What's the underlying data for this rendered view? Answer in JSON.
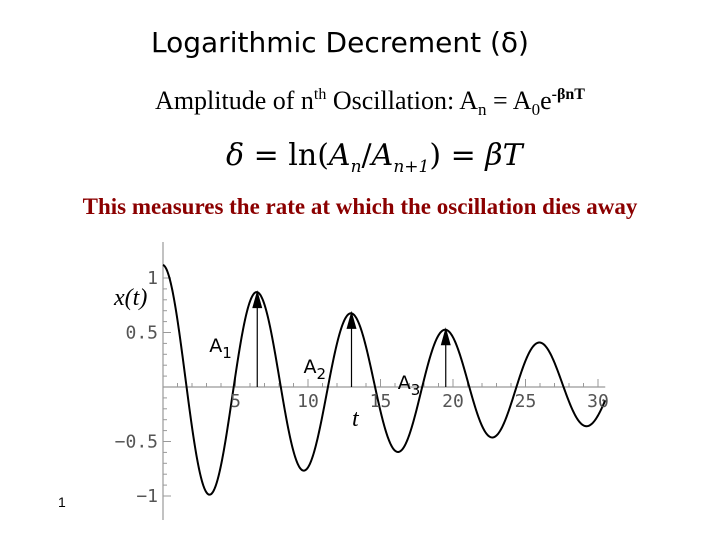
{
  "slide": {
    "title": "Logarithmic Decrement (δ)",
    "amplitude_prefix": "Amplitude of n",
    "amplitude_sup_th": "th",
    "amplitude_mid": " Oscillation: A",
    "amplitude_sub_n": "n",
    "amplitude_eq": " = A",
    "amplitude_sub_0": "0",
    "amplitude_e": "e",
    "amplitude_exponent": "-βnT",
    "formula_delta": "δ",
    "formula_eq1": " = ln(",
    "formula_An": "A",
    "formula_sub_n": "n",
    "formula_slash": "/",
    "formula_An1": "A",
    "formula_sub_n1": "n+1",
    "formula_eq2": ") = ",
    "formula_beta": "βT",
    "measure_text": "This measures the rate at which the oscillation dies away",
    "page_number": "1"
  },
  "chart_data": {
    "type": "line",
    "title": "",
    "xlabel": "t",
    "ylabel": "x(t)",
    "xlim": [
      0,
      30.5
    ],
    "ylim": [
      -1.1,
      1.2
    ],
    "x_ticks": [
      {
        "value": 5,
        "label": "5"
      },
      {
        "value": 10,
        "label": "10"
      },
      {
        "value": 15,
        "label": "15"
      },
      {
        "value": 20,
        "label": "20"
      },
      {
        "value": 25,
        "label": "25"
      },
      {
        "value": 30,
        "label": "30"
      }
    ],
    "y_ticks": [
      {
        "value": 1,
        "label": "1"
      },
      {
        "value": 0.5,
        "label": "0.5"
      },
      {
        "value": -0.5,
        "label": "−0.5"
      },
      {
        "value": -1,
        "label": "−1"
      }
    ],
    "curve": {
      "function": "damped cosine",
      "peaks": [
        {
          "t": 0.0,
          "x": 1.12
        },
        {
          "t": 6.5,
          "x": 0.87
        },
        {
          "t": 13.0,
          "x": 0.68
        },
        {
          "t": 19.5,
          "x": 0.53
        },
        {
          "t": 26.0,
          "x": 0.41
        }
      ],
      "period": 6.5
    },
    "annotations": [
      {
        "label": "A",
        "sub": "1",
        "t": 6.5,
        "value": 0.87
      },
      {
        "label": "A",
        "sub": "2",
        "t": 13.0,
        "value": 0.68
      },
      {
        "label": "A",
        "sub": "3",
        "t": 19.5,
        "value": 0.53
      }
    ],
    "colors": {
      "curve": "#000000",
      "axes": "#999999",
      "ticks_text": "#555555"
    }
  }
}
